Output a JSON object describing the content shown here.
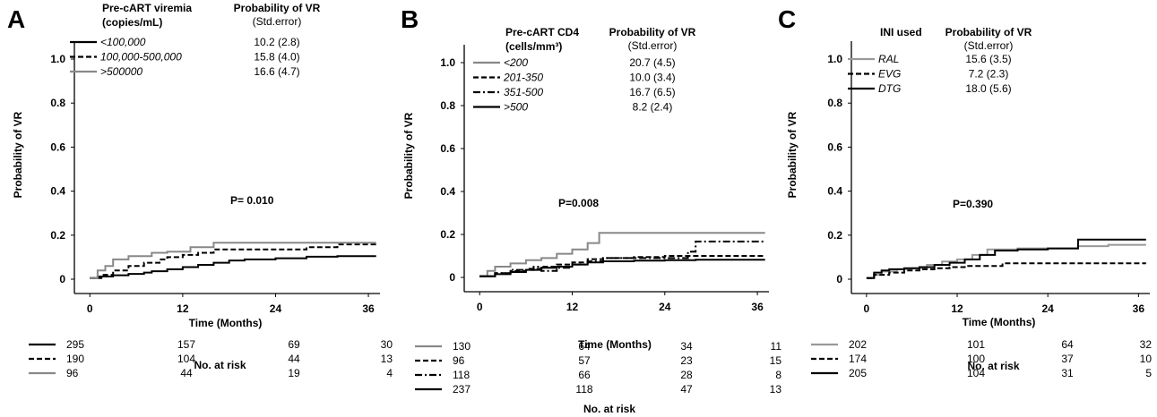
{
  "chart_data": [
    {
      "type": "line",
      "panel": "A",
      "ylabel": "Probability of VR",
      "xlabel": "Time (Months)",
      "xticks": [
        0,
        12,
        24,
        36
      ],
      "yticks": [
        "0",
        "0.2",
        "0.4",
        "0.6",
        "0.8",
        "1.0"
      ],
      "xlim": [
        -2,
        37.5
      ],
      "ylim": [
        0,
        1.05
      ],
      "legend_title": [
        "Pre-cART viremia",
        "(copies/mL)"
      ],
      "legend_prob_header": [
        "Probability of VR",
        "(Std.error)"
      ],
      "p_value": "P= 0.010",
      "risk_title": "No. at risk",
      "series": [
        {
          "name": "<100,000",
          "prob": "10.2 (2.8)",
          "color": "#000000",
          "dash": "solid",
          "x": [
            0,
            1,
            3,
            5,
            7,
            8,
            10,
            12,
            14,
            16,
            18,
            20,
            24,
            28,
            32,
            37
          ],
          "y": [
            0.005,
            0.012,
            0.018,
            0.024,
            0.03,
            0.036,
            0.045,
            0.055,
            0.065,
            0.075,
            0.085,
            0.09,
            0.095,
            0.102,
            0.105,
            0.105
          ],
          "risk": [
            "295",
            "157",
            "69",
            "30"
          ]
        },
        {
          "name": "100,000-500,000",
          "prob": "15.8 (4.0)",
          "color": "#000000",
          "dash": "dash",
          "x": [
            0,
            1.5,
            3,
            5,
            7,
            9,
            10,
            12,
            14,
            16,
            18,
            20,
            24,
            28,
            32,
            37
          ],
          "y": [
            0.005,
            0.02,
            0.04,
            0.06,
            0.075,
            0.09,
            0.1,
            0.11,
            0.12,
            0.135,
            0.135,
            0.135,
            0.135,
            0.145,
            0.158,
            0.158
          ],
          "risk": [
            "190",
            "104",
            "44",
            "13"
          ]
        },
        {
          "name": ">500000",
          "prob": "16.6 (4.7)",
          "color": "#888888",
          "dash": "solid",
          "x": [
            0,
            1,
            2,
            3,
            5,
            8,
            10,
            13,
            14,
            16,
            20,
            24,
            28,
            32,
            37
          ],
          "y": [
            0.005,
            0.04,
            0.06,
            0.09,
            0.105,
            0.12,
            0.125,
            0.145,
            0.145,
            0.166,
            0.166,
            0.166,
            0.166,
            0.166,
            0.166
          ],
          "risk": [
            "96",
            "44",
            "19",
            "4"
          ]
        }
      ]
    },
    {
      "type": "line",
      "panel": "B",
      "ylabel": "Probability of VR",
      "xlabel": "Time (Months)",
      "xticks": [
        0,
        12,
        24,
        36
      ],
      "yticks": [
        "0",
        "0.2",
        "0.4",
        "0.6",
        "0.8",
        "1.0"
      ],
      "xlim": [
        -2,
        37.5
      ],
      "ylim": [
        0,
        1.05
      ],
      "legend_title": [
        "Pre-cART CD4",
        "(cells/mm³)"
      ],
      "legend_prob_header": [
        "Probability of VR",
        "(Std.error)"
      ],
      "p_value": "P=0.008",
      "risk_title": "No. at risk",
      "series": [
        {
          "name": "<200",
          "prob": "20.7 (4.5)",
          "color": "#888888",
          "dash": "solid",
          "x": [
            0,
            1,
            2,
            4,
            6,
            8,
            10,
            12,
            14,
            15.5,
            20,
            24,
            30,
            37
          ],
          "y": [
            0.005,
            0.03,
            0.05,
            0.065,
            0.08,
            0.09,
            0.11,
            0.13,
            0.16,
            0.207,
            0.207,
            0.207,
            0.207,
            0.207
          ],
          "risk": [
            "130",
            "64",
            "34",
            "11"
          ]
        },
        {
          "name": "201-350",
          "prob": "10.0 (3.4)",
          "color": "#000000",
          "dash": "dash",
          "x": [
            0,
            2,
            4,
            6,
            8,
            10,
            12,
            14,
            16,
            20,
            24,
            28,
            32,
            37
          ],
          "y": [
            0.005,
            0.02,
            0.03,
            0.04,
            0.05,
            0.06,
            0.07,
            0.085,
            0.09,
            0.095,
            0.1,
            0.1,
            0.1,
            0.1
          ],
          "risk": [
            "96",
            "57",
            "23",
            "15"
          ]
        },
        {
          "name": "351-500",
          "prob": "16.7 (6.5)",
          "color": "#000000",
          "dash": "dashdot",
          "x": [
            0,
            2,
            4,
            7,
            8,
            10,
            12,
            14,
            16,
            20,
            24,
            27,
            28,
            32,
            37
          ],
          "y": [
            0.005,
            0.02,
            0.035,
            0.05,
            0.03,
            0.045,
            0.06,
            0.075,
            0.09,
            0.09,
            0.09,
            0.12,
            0.167,
            0.167,
            0.167
          ],
          "risk": [
            "118",
            "66",
            "28",
            "8"
          ]
        },
        {
          "name": ">500",
          "prob": "8.2 (2.4)",
          "color": "#000000",
          "dash": "solid",
          "x": [
            0,
            2,
            4,
            6,
            8,
            10,
            12,
            14,
            16,
            20,
            24,
            28,
            32,
            37
          ],
          "y": [
            0.005,
            0.015,
            0.025,
            0.035,
            0.045,
            0.05,
            0.06,
            0.07,
            0.075,
            0.078,
            0.08,
            0.082,
            0.082,
            0.082
          ],
          "risk": [
            "237",
            "118",
            "47",
            "13"
          ]
        }
      ]
    },
    {
      "type": "line",
      "panel": "C",
      "ylabel": "Probability of VR",
      "xlabel": "Time (Months)",
      "xticks": [
        0,
        12,
        24,
        36
      ],
      "yticks": [
        "0",
        "0.2",
        "0.4",
        "0.6",
        "0.8",
        "1.0"
      ],
      "xlim": [
        -2,
        37.5
      ],
      "ylim": [
        0,
        1.05
      ],
      "legend_title": [
        "INI used"
      ],
      "legend_prob_header": [
        "Probability of VR",
        "(Std.error)"
      ],
      "p_value": "P=0.390",
      "risk_title": "No. at risk",
      "series": [
        {
          "name": "RAL",
          "prob": "15.6 (3.5)",
          "color": "#999999",
          "dash": "solid",
          "x": [
            0,
            1,
            2,
            4,
            6,
            8,
            10,
            12,
            14,
            16,
            20,
            24,
            28,
            32,
            37
          ],
          "y": [
            0.005,
            0.02,
            0.035,
            0.045,
            0.05,
            0.065,
            0.08,
            0.09,
            0.11,
            0.135,
            0.14,
            0.14,
            0.15,
            0.156,
            0.156
          ],
          "risk": [
            "202",
            "101",
            "64",
            "32"
          ]
        },
        {
          "name": "EVG",
          "prob": "7.2 (2.3)",
          "color": "#000000",
          "dash": "dash",
          "x": [
            0,
            1,
            3,
            5,
            7,
            9,
            11,
            13,
            16,
            18,
            24,
            30,
            37
          ],
          "y": [
            0.005,
            0.02,
            0.03,
            0.04,
            0.045,
            0.05,
            0.055,
            0.06,
            0.06,
            0.072,
            0.072,
            0.072,
            0.072
          ],
          "risk": [
            "174",
            "100",
            "37",
            "10"
          ]
        },
        {
          "name": "DTG",
          "prob": "18.0 (5.6)",
          "color": "#000000",
          "dash": "solid",
          "x": [
            0,
            1,
            2,
            3,
            5,
            7,
            9,
            11,
            13,
            15,
            17,
            20,
            24,
            28,
            32,
            37
          ],
          "y": [
            0.005,
            0.03,
            0.04,
            0.045,
            0.05,
            0.055,
            0.065,
            0.075,
            0.09,
            0.11,
            0.13,
            0.135,
            0.14,
            0.18,
            0.18,
            0.18
          ],
          "risk": [
            "205",
            "104",
            "31",
            "5"
          ]
        }
      ]
    }
  ]
}
